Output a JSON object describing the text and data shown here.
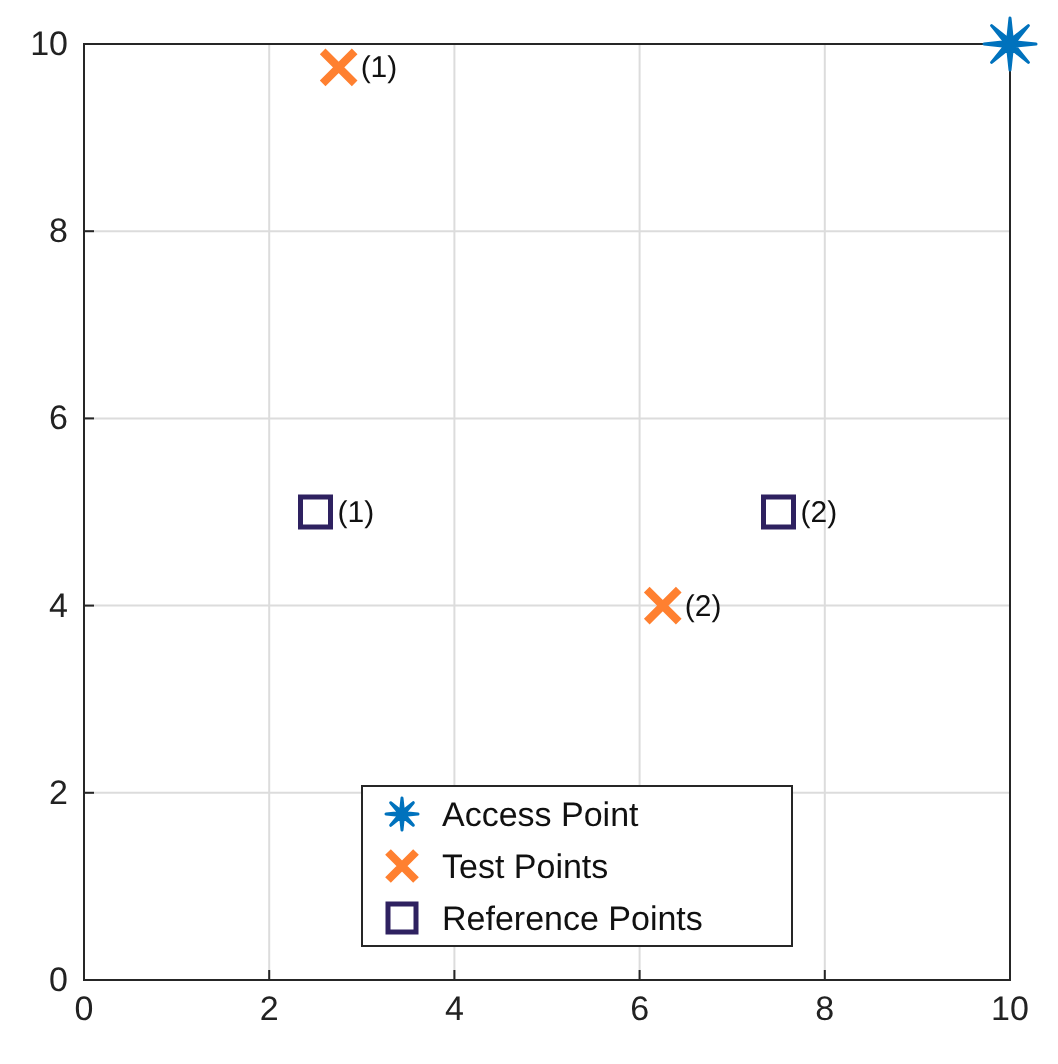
{
  "chart_data": {
    "type": "scatter",
    "xlim": [
      0,
      10
    ],
    "ylim": [
      0,
      10
    ],
    "xticks": [
      0,
      2,
      4,
      6,
      8,
      10
    ],
    "yticks": [
      0,
      2,
      4,
      6,
      8,
      10
    ],
    "grid": true,
    "legend": "bottom",
    "series": [
      {
        "name": "Access Point",
        "color": "#0072bd",
        "marker": "star",
        "x": [
          10
        ],
        "values": [
          10
        ]
      },
      {
        "name": "Test Points",
        "color": "#ff8030",
        "marker": "cross",
        "x": [
          2.75,
          6.25
        ],
        "values": [
          9.75,
          4
        ]
      },
      {
        "name": "Reference Points",
        "color": "#2e2160",
        "marker": "square",
        "x": [
          2.5,
          7.5
        ],
        "values": [
          5,
          5
        ]
      }
    ],
    "annotations": [
      {
        "text": "(1)",
        "x": 2.75,
        "y": 9.75
      },
      {
        "text": "(2)",
        "x": 6.25,
        "y": 4
      },
      {
        "text": "(1)",
        "x": 2.5,
        "y": 5
      },
      {
        "text": "(2)",
        "x": 7.5,
        "y": 5
      }
    ]
  }
}
